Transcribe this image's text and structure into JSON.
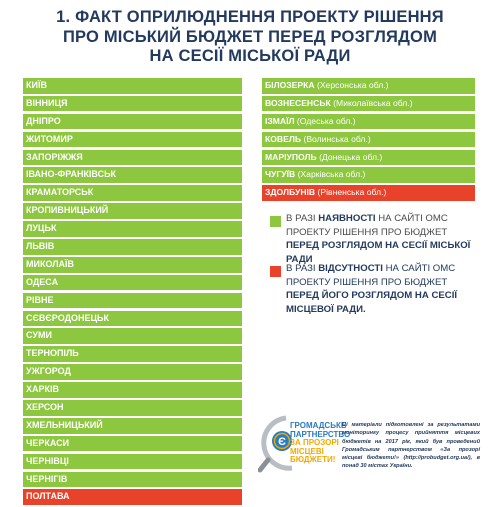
{
  "title": {
    "line1": "1. ФАКТ ОПРИЛЮДНЕННЯ ПРОЕКТУ РІШЕННЯ",
    "line2": "ПРО МІСЬКИЙ БЮДЖЕТ ПЕРЕД  РОЗГЛЯДОМ",
    "line3": "НА СЕСІЇ МІСЬКОЇ РАДИ"
  },
  "colors": {
    "green": "#8dc63f",
    "red": "#e8432a",
    "title": "#233a5e"
  },
  "left_cities": [
    {
      "name": "КИЇВ",
      "status": "green"
    },
    {
      "name": "ВІННИЦЯ",
      "status": "green"
    },
    {
      "name": "ДНІПРО",
      "status": "green"
    },
    {
      "name": "ЖИТОМИР",
      "status": "green"
    },
    {
      "name": "ЗАПОРІЖЖЯ",
      "status": "green"
    },
    {
      "name": "ІВАНО-ФРАНКІВСЬК",
      "status": "green"
    },
    {
      "name": "КРАМАТОРСЬК",
      "status": "green"
    },
    {
      "name": "КРОПИВНИЦЬКИЙ",
      "status": "green"
    },
    {
      "name": "ЛУЦЬК",
      "status": "green"
    },
    {
      "name": "ЛЬВІВ",
      "status": "green"
    },
    {
      "name": "МИКОЛАЇВ",
      "status": "green"
    },
    {
      "name": "ОДЕСА",
      "status": "green"
    },
    {
      "name": "РІВНЕ",
      "status": "green"
    },
    {
      "name": "СЄВЄРОДОНЕЦЬК",
      "status": "green"
    },
    {
      "name": "СУМИ",
      "status": "green"
    },
    {
      "name": "ТЕРНОПІЛЬ",
      "status": "green"
    },
    {
      "name": "УЖГОРОД",
      "status": "green"
    },
    {
      "name": "ХАРКІВ",
      "status": "green"
    },
    {
      "name": "ХЕРСОН",
      "status": "green"
    },
    {
      "name": "ХМЕЛЬНИЦЬКИЙ",
      "status": "green"
    },
    {
      "name": "ЧЕРКАСИ",
      "status": "green"
    },
    {
      "name": "ЧЕРНІВЦІ",
      "status": "green"
    },
    {
      "name": "ЧЕРНІГІВ",
      "status": "green"
    },
    {
      "name": "ПОЛТАВА",
      "status": "red"
    }
  ],
  "right_cities": [
    {
      "name": "БІЛОЗЕРКА",
      "region": " (Херсонська обл.)",
      "status": "green"
    },
    {
      "name": "ВОЗНЕСЕНСЬК",
      "region": " (Миколаївська обл.)",
      "status": "green"
    },
    {
      "name": "ІЗМАЇЛ",
      "region": " (Одеська обл.)",
      "status": "green"
    },
    {
      "name": "КОВЕЛЬ",
      "region": " (Волинська обл.)",
      "status": "green"
    },
    {
      "name": "МАРІУПОЛЬ",
      "region": " (Донецька обл.)",
      "status": "green"
    },
    {
      "name": "ЧУГУЇВ",
      "region": " (Харківська обл.)",
      "status": "green"
    },
    {
      "name": "ЗДОЛБУНІВ",
      "region": " (Рівненська обл.)",
      "status": "red"
    }
  ],
  "legend": {
    "green": {
      "pre": "В РАЗІ ",
      "bold1": "НАЯВНОСТІ",
      "mid": " НА САЙТІ ОМС ПРОЕКТУ РІШЕННЯ ПРО БЮДЖЕТ ",
      "bold2": "ПЕРЕД РОЗГЛЯДОМ НА СЕСІЇ МІСЬКОЇ РАДИ"
    },
    "red": {
      "pre": "В РАЗІ ",
      "bold1": "ВІДСУТНОСТІ",
      "mid": " НА САЙТІ ОМС ПРОЕКТУ РІШЕННЯ ПРО БЮДЖЕТ ",
      "bold2": "ПЕРЕД ЙОГО РОЗГЛЯДОМ НА СЕСІЇ МІСЦЕВОЇ РАДИ."
    }
  },
  "logo": {
    "line1": "ГРОМАДСЬКЕ",
    "line2": "ПАРТНЕРСТВО",
    "line3": "ЗА ПРОЗОРІ",
    "line4": "МІСЦЕВІ БЮДЖЕТИ!",
    "icon": "coin-e-logo-icon"
  },
  "note": "Ці матеріали підготовлені за результатами моніторингу процесу прийняття місцевих бюджетів на 2017 рік, який був проведений Громадським партнерством «За прозорі місцеві бюджети!» (http://probudget.org.ua/), в понад 30 містах України."
}
